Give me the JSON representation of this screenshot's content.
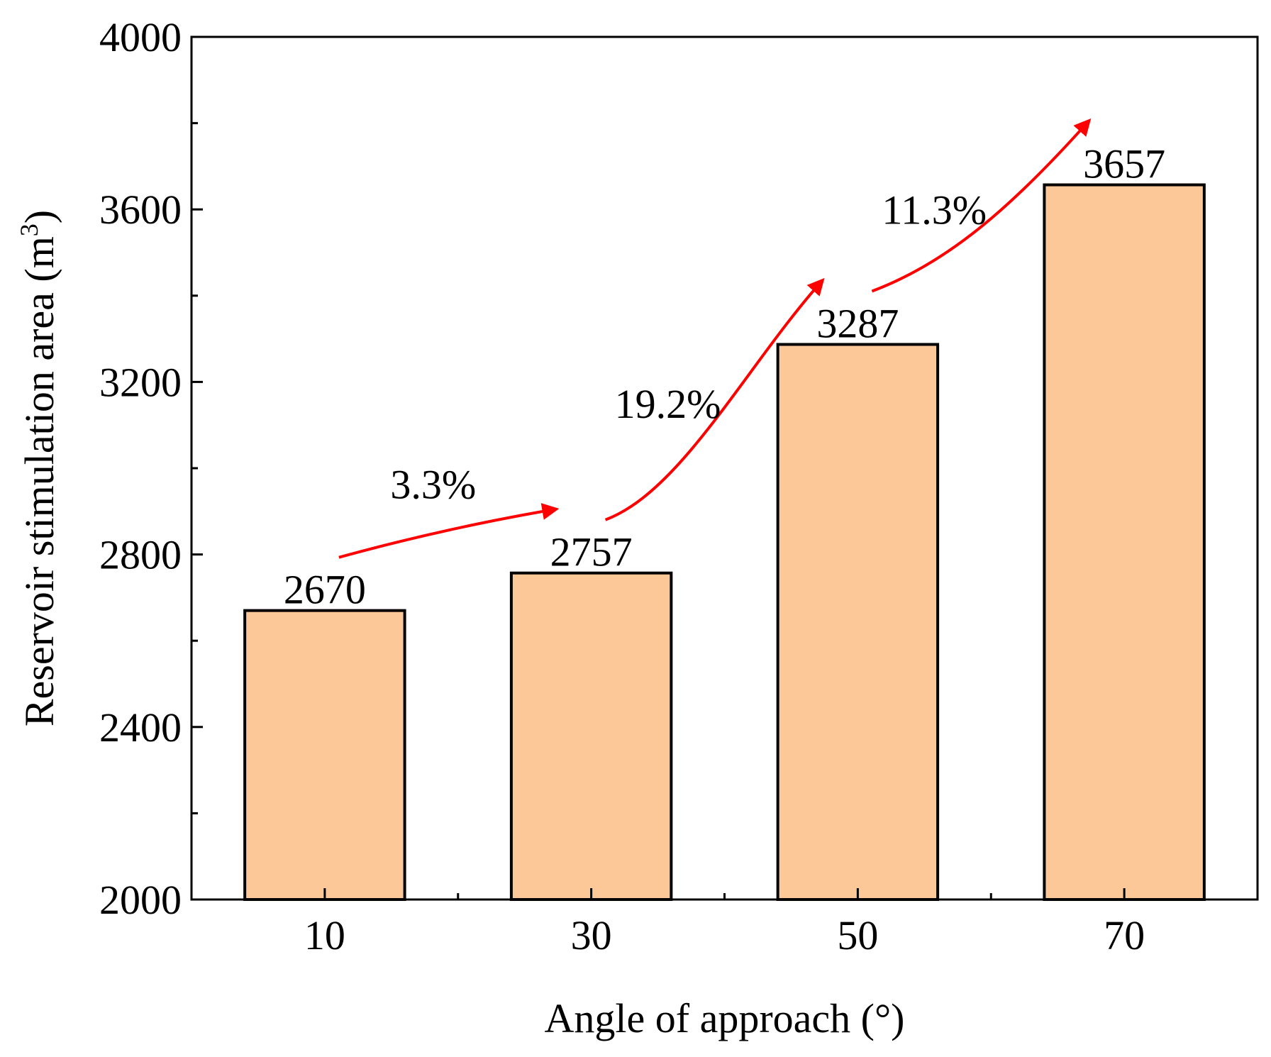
{
  "chart_data": {
    "type": "bar",
    "title": "",
    "categories": [
      "10",
      "30",
      "50",
      "70"
    ],
    "values": [
      2670,
      2757,
      3287,
      3657
    ],
    "data_labels": [
      "2670",
      "2757",
      "3287",
      "3657"
    ],
    "xlabel": "Angle of approach (°)",
    "ylabel_main": "Reservoir stimulation area (m",
    "ylabel_sup": "3",
    "ylabel_close": ")",
    "ylim": [
      2000,
      4000
    ],
    "yticks": [
      2000,
      2400,
      2800,
      3200,
      3600,
      4000
    ],
    "ytick_labels": [
      "2000",
      "2400",
      "2800",
      "3200",
      "3600",
      "4000"
    ],
    "grid": false,
    "bar_color": "#FCC897",
    "bar_edge_color": "#000000",
    "annotations": [
      {
        "text": "3.3%",
        "from": 0,
        "to": 1
      },
      {
        "text": "19.2%",
        "from": 1,
        "to": 2
      },
      {
        "text": "11.3%",
        "from": 2,
        "to": 3
      }
    ],
    "arrow_color": "#FF0000"
  }
}
